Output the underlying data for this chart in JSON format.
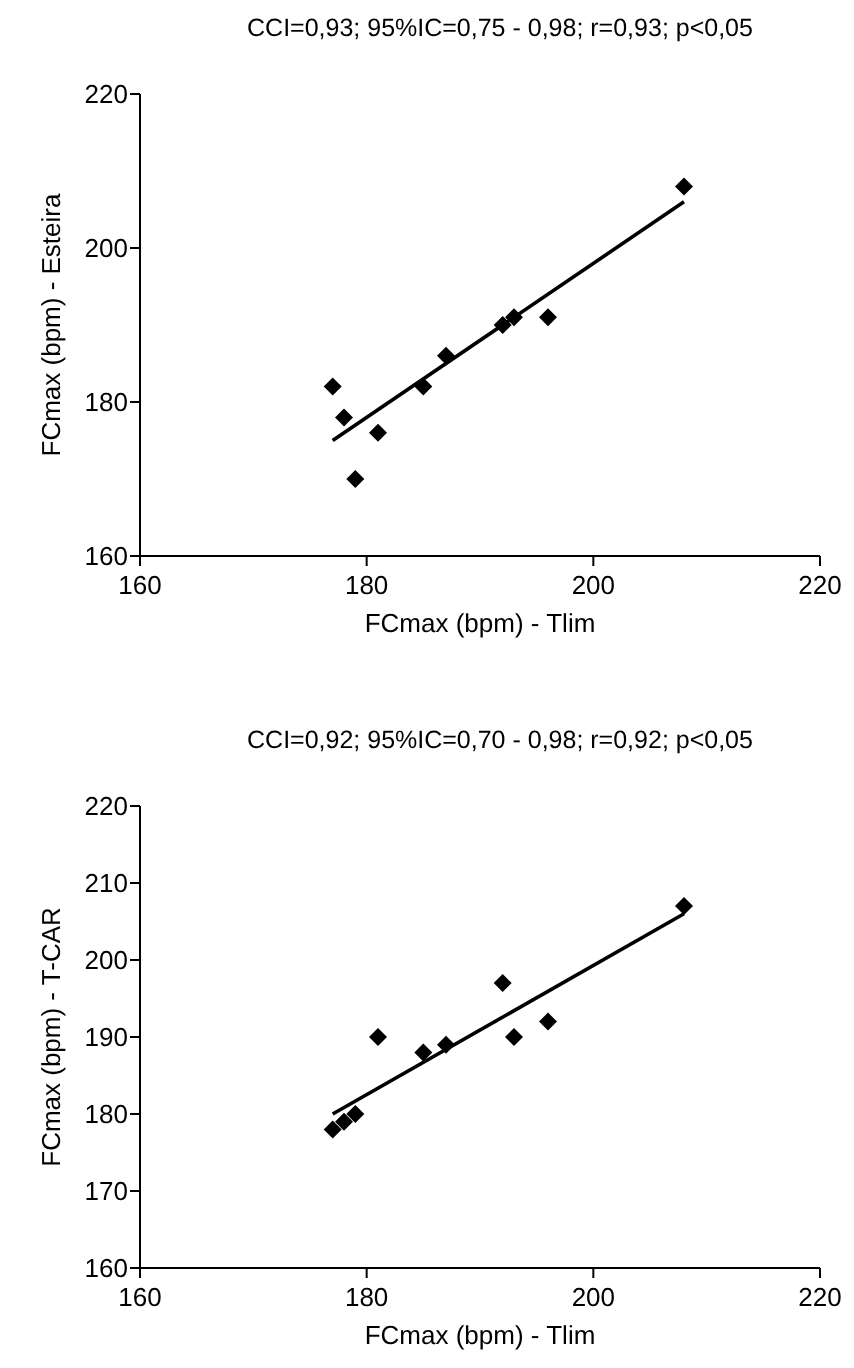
{
  "chart_data": [
    {
      "type": "scatter",
      "title": "CCI=0,93; 95%IC=0,75 - 0,98; r=0,93; p<0,05",
      "xlabel": "FCmax (bpm) - Tlim",
      "ylabel": "FCmax (bpm) - Esteira",
      "xlim": [
        160,
        220
      ],
      "xticks": [
        160,
        180,
        200,
        220
      ],
      "ylim": [
        160,
        220
      ],
      "yticks": [
        160,
        180,
        200,
        220
      ],
      "marker": "diamond",
      "series": [
        {
          "color": "#000000",
          "x": [
            177,
            178,
            179,
            181,
            185,
            187,
            192,
            193,
            196,
            208
          ],
          "values": [
            182,
            178,
            170,
            176,
            182,
            186,
            190,
            191,
            191,
            208
          ]
        },
        {
          "type": "line",
          "color": "#000000",
          "marker": "none",
          "x": [
            177,
            208
          ],
          "values": [
            175,
            206
          ]
        }
      ]
    },
    {
      "type": "scatter",
      "title": "CCI=0,92; 95%IC=0,70 - 0,98; r=0,92; p<0,05",
      "xlabel": "FCmax (bpm) - Tlim",
      "ylabel": "FCmax (bpm) - T-CAR",
      "xlim": [
        160,
        220
      ],
      "xticks": [
        160,
        180,
        200,
        220
      ],
      "ylim": [
        160,
        220
      ],
      "yticks": [
        160,
        170,
        180,
        190,
        200,
        210,
        220
      ],
      "marker": "diamond",
      "series": [
        {
          "color": "#000000",
          "x": [
            177,
            178,
            179,
            181,
            185,
            187,
            192,
            193,
            196,
            208
          ],
          "values": [
            178,
            179,
            180,
            190,
            188,
            189,
            197,
            190,
            192,
            207
          ]
        },
        {
          "type": "line",
          "color": "#000000",
          "marker": "none",
          "x": [
            177,
            208
          ],
          "values": [
            180,
            206
          ]
        }
      ]
    }
  ]
}
